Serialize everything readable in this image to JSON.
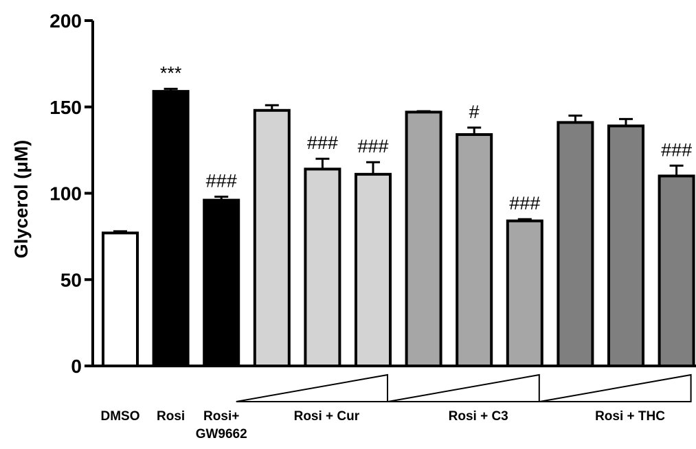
{
  "chart_data": {
    "type": "bar",
    "ylabel": "Glycerol (μM)",
    "ylim": [
      0,
      200
    ],
    "yticks": [
      0,
      50,
      100,
      150,
      200
    ],
    "grid": false,
    "bars": [
      {
        "value": 77,
        "error": 1,
        "color": "#ffffff",
        "annotation": ""
      },
      {
        "value": 159,
        "error": 1.5,
        "color": "#000000",
        "annotation": "***"
      },
      {
        "value": 96,
        "error": 2,
        "color": "#000000",
        "annotation": "###"
      },
      {
        "value": 148,
        "error": 3,
        "color": "#d3d3d3",
        "annotation": ""
      },
      {
        "value": 114,
        "error": 6,
        "color": "#d3d3d3",
        "annotation": "###"
      },
      {
        "value": 111,
        "error": 7,
        "color": "#d3d3d3",
        "annotation": "###"
      },
      {
        "value": 147,
        "error": 0.5,
        "color": "#a6a6a6",
        "annotation": ""
      },
      {
        "value": 134,
        "error": 4,
        "color": "#a6a6a6",
        "annotation": "#"
      },
      {
        "value": 84,
        "error": 1,
        "color": "#a6a6a6",
        "annotation": "###"
      },
      {
        "value": 141,
        "error": 4,
        "color": "#7f7f7f",
        "annotation": ""
      },
      {
        "value": 139,
        "error": 4,
        "color": "#7f7f7f",
        "annotation": ""
      },
      {
        "value": 110,
        "error": 6,
        "color": "#7f7f7f",
        "annotation": "###"
      }
    ],
    "category_labels": [
      {
        "lines": [
          "DMSO"
        ],
        "bars": [
          0
        ]
      },
      {
        "lines": [
          "Rosi"
        ],
        "bars": [
          1
        ]
      },
      {
        "lines": [
          "Rosi+",
          "GW9662"
        ],
        "bars": [
          2
        ]
      },
      {
        "lines": [
          "Rosi + Cur"
        ],
        "bars": [
          3,
          4,
          5
        ],
        "ramp": true
      },
      {
        "lines": [
          "Rosi + C3"
        ],
        "bars": [
          6,
          7,
          8
        ],
        "ramp": true
      },
      {
        "lines": [
          "Rosi + THC"
        ],
        "bars": [
          9,
          10,
          11
        ],
        "ramp": true
      }
    ]
  }
}
